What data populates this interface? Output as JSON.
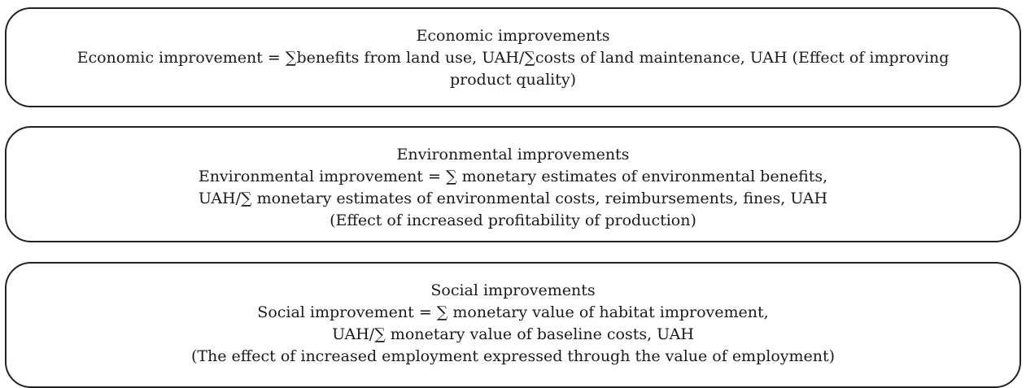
{
  "boxes": [
    {
      "title": "Economic improvements",
      "lines": [
        "Economic improvement = ∑benefits from land use, UAH/∑costs of land maintenance, UAH (Effect of improving",
        "product quality)"
      ]
    },
    {
      "title": "Environmental improvements",
      "lines": [
        "Environmental improvement = ∑ monetary estimates of environmental benefits,",
        "UAH/∑ monetary estimates of environmental costs, reimbursements, fines, UAH",
        "(Effect of increased profitability of production)"
      ]
    },
    {
      "title": "Social improvements",
      "lines": [
        "Social improvement = ∑ monetary value of habitat improvement,",
        "UAH/∑ monetary value of baseline costs, UAH",
        "(The effect of increased employment expressed through the value of employment)"
      ]
    }
  ]
}
